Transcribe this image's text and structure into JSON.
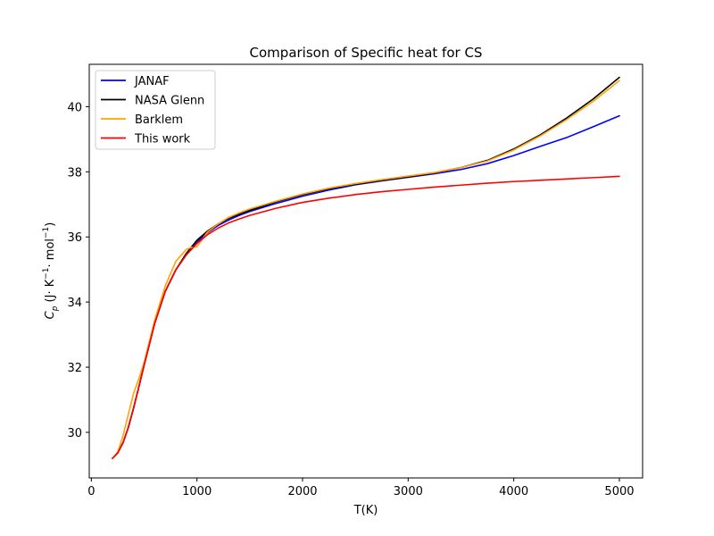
{
  "chart_data": {
    "type": "line",
    "title": "Comparison of Specific heat for CS",
    "xlabel": "T(K)",
    "ylabel": "C_p (J· K⁻¹· mol⁻¹)",
    "xlim": [
      -20,
      5220
    ],
    "ylim": [
      28.6,
      41.3
    ],
    "xticks": [
      0,
      1000,
      2000,
      3000,
      4000,
      5000
    ],
    "yticks": [
      30,
      32,
      34,
      36,
      38,
      40
    ],
    "grid": false,
    "legend_position": "upper-left",
    "series": [
      {
        "name": "JANAF",
        "color": "#0000ff",
        "x": [
          200,
          250,
          300,
          350,
          400,
          450,
          500,
          600,
          700,
          800,
          900,
          1000,
          1100,
          1200,
          1300,
          1400,
          1500,
          1750,
          2000,
          2250,
          2500,
          2750,
          3000,
          3250,
          3500,
          3750,
          4000,
          4250,
          4500,
          4750,
          5000
        ],
        "y": [
          29.2,
          29.37,
          29.68,
          30.15,
          30.75,
          31.4,
          32.07,
          33.35,
          34.33,
          34.99,
          35.47,
          35.85,
          36.13,
          36.35,
          36.52,
          36.66,
          36.78,
          37.03,
          37.25,
          37.44,
          37.6,
          37.72,
          37.83,
          37.94,
          38.07,
          38.25,
          38.5,
          38.78,
          39.05,
          39.38,
          39.72
        ]
      },
      {
        "name": "NASA Glenn",
        "color": "#000000",
        "x": [
          200,
          250,
          300,
          350,
          400,
          450,
          500,
          600,
          700,
          800,
          900,
          1000,
          1100,
          1200,
          1300,
          1400,
          1500,
          1750,
          2000,
          2250,
          2500,
          2750,
          3000,
          3250,
          3500,
          3750,
          4000,
          4250,
          4500,
          4750,
          5000
        ],
        "y": [
          29.2,
          29.37,
          29.68,
          30.15,
          30.75,
          31.4,
          32.07,
          33.35,
          34.33,
          34.99,
          35.5,
          35.9,
          36.18,
          36.4,
          36.57,
          36.7,
          36.82,
          37.08,
          37.3,
          37.48,
          37.62,
          37.74,
          37.85,
          37.97,
          38.13,
          38.35,
          38.7,
          39.13,
          39.65,
          40.23,
          40.9
        ]
      },
      {
        "name": "Barklem",
        "color": "#ffa500",
        "x": [
          200,
          250,
          300,
          350,
          400,
          450,
          500,
          600,
          700,
          800,
          900,
          950,
          1000,
          1100,
          1200,
          1300,
          1400,
          1500,
          1750,
          2000,
          2250,
          2500,
          2750,
          3000,
          3250,
          3500,
          3750,
          4000,
          4250,
          4500,
          4750,
          5000
        ],
        "y": [
          29.2,
          29.4,
          29.9,
          30.55,
          31.2,
          31.65,
          32.15,
          33.45,
          34.5,
          35.25,
          35.62,
          35.68,
          35.7,
          36.15,
          36.4,
          36.6,
          36.74,
          36.86,
          37.1,
          37.32,
          37.5,
          37.64,
          37.76,
          37.87,
          37.98,
          38.13,
          38.33,
          38.67,
          39.1,
          39.6,
          40.16,
          40.8
        ]
      },
      {
        "name": "This work",
        "color": "#ff0000",
        "x": [
          200,
          250,
          300,
          350,
          400,
          450,
          500,
          600,
          700,
          800,
          900,
          1000,
          1100,
          1200,
          1300,
          1400,
          1500,
          1750,
          2000,
          2250,
          2500,
          2750,
          3000,
          3250,
          3500,
          3750,
          4000,
          4250,
          4500,
          4750,
          5000
        ],
        "y": [
          29.2,
          29.37,
          29.68,
          30.15,
          30.75,
          31.4,
          32.07,
          33.35,
          34.33,
          34.99,
          35.45,
          35.8,
          36.07,
          36.27,
          36.43,
          36.55,
          36.66,
          36.88,
          37.06,
          37.19,
          37.3,
          37.39,
          37.46,
          37.53,
          37.59,
          37.65,
          37.7,
          37.74,
          37.78,
          37.82,
          37.86
        ]
      }
    ]
  }
}
